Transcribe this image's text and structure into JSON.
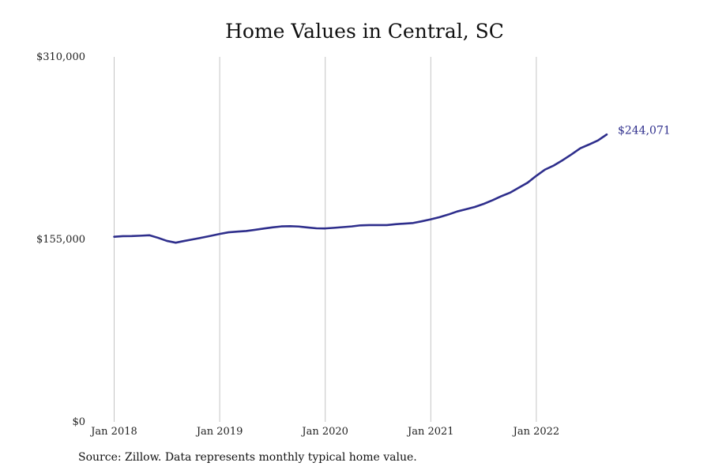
{
  "chart_data": {
    "type": "line",
    "title": "Home Values in Central, SC",
    "xlabel": "",
    "ylabel": "",
    "ylim": [
      0,
      310000
    ],
    "y_ticks": [
      {
        "value": 0,
        "label": "$0"
      },
      {
        "value": 155000,
        "label": "$155,000"
      },
      {
        "value": 310000,
        "label": "$310,000"
      }
    ],
    "x_ticks": [
      {
        "value": 2018.0,
        "label": "Jan 2018"
      },
      {
        "value": 2019.0,
        "label": "Jan 2019"
      },
      {
        "value": 2020.0,
        "label": "Jan 2020"
      },
      {
        "value": 2021.0,
        "label": "Jan 2021"
      },
      {
        "value": 2022.0,
        "label": "Jan 2022"
      }
    ],
    "xlim": [
      "2018-01",
      "2022-12"
    ],
    "grid": "vertical",
    "series_color": "#2e2e8c",
    "series": [
      {
        "x": [
          "2018-01",
          "2018-02",
          "2018-03",
          "2018-04",
          "2018-05",
          "2018-06",
          "2018-07",
          "2018-08",
          "2018-09",
          "2018-10",
          "2018-11",
          "2018-12",
          "2019-01",
          "2019-02",
          "2019-03",
          "2019-04",
          "2019-05",
          "2019-06",
          "2019-07",
          "2019-08",
          "2019-09",
          "2019-10",
          "2019-11",
          "2019-12",
          "2020-01",
          "2020-02",
          "2020-03",
          "2020-04",
          "2020-05",
          "2020-06",
          "2020-07",
          "2020-08",
          "2020-09",
          "2020-10",
          "2020-11",
          "2020-12",
          "2021-01",
          "2021-02",
          "2021-03",
          "2021-04",
          "2021-05",
          "2021-06",
          "2021-07",
          "2021-08",
          "2021-09",
          "2021-10",
          "2021-11",
          "2021-12",
          "2022-01",
          "2022-02",
          "2022-03",
          "2022-04",
          "2022-05",
          "2022-06",
          "2022-07",
          "2022-08",
          "2022-09"
        ],
        "values": [
          157200,
          157700,
          157800,
          158100,
          158500,
          156300,
          153700,
          152200,
          153700,
          155100,
          156500,
          158000,
          159600,
          161000,
          161600,
          162100,
          163100,
          164200,
          165200,
          166000,
          166200,
          165900,
          165100,
          164400,
          164300,
          164800,
          165400,
          166000,
          166900,
          167100,
          167100,
          167100,
          167900,
          168400,
          168900,
          170400,
          172000,
          173900,
          176100,
          178700,
          180600,
          182500,
          185100,
          188200,
          191600,
          194600,
          198900,
          203100,
          209000,
          214300,
          217800,
          222300,
          227200,
          232400,
          235600,
          239000,
          244071
        ]
      }
    ],
    "end_label": "$244,071"
  },
  "source_note": "Source: Zillow. Data represents monthly typical home value."
}
